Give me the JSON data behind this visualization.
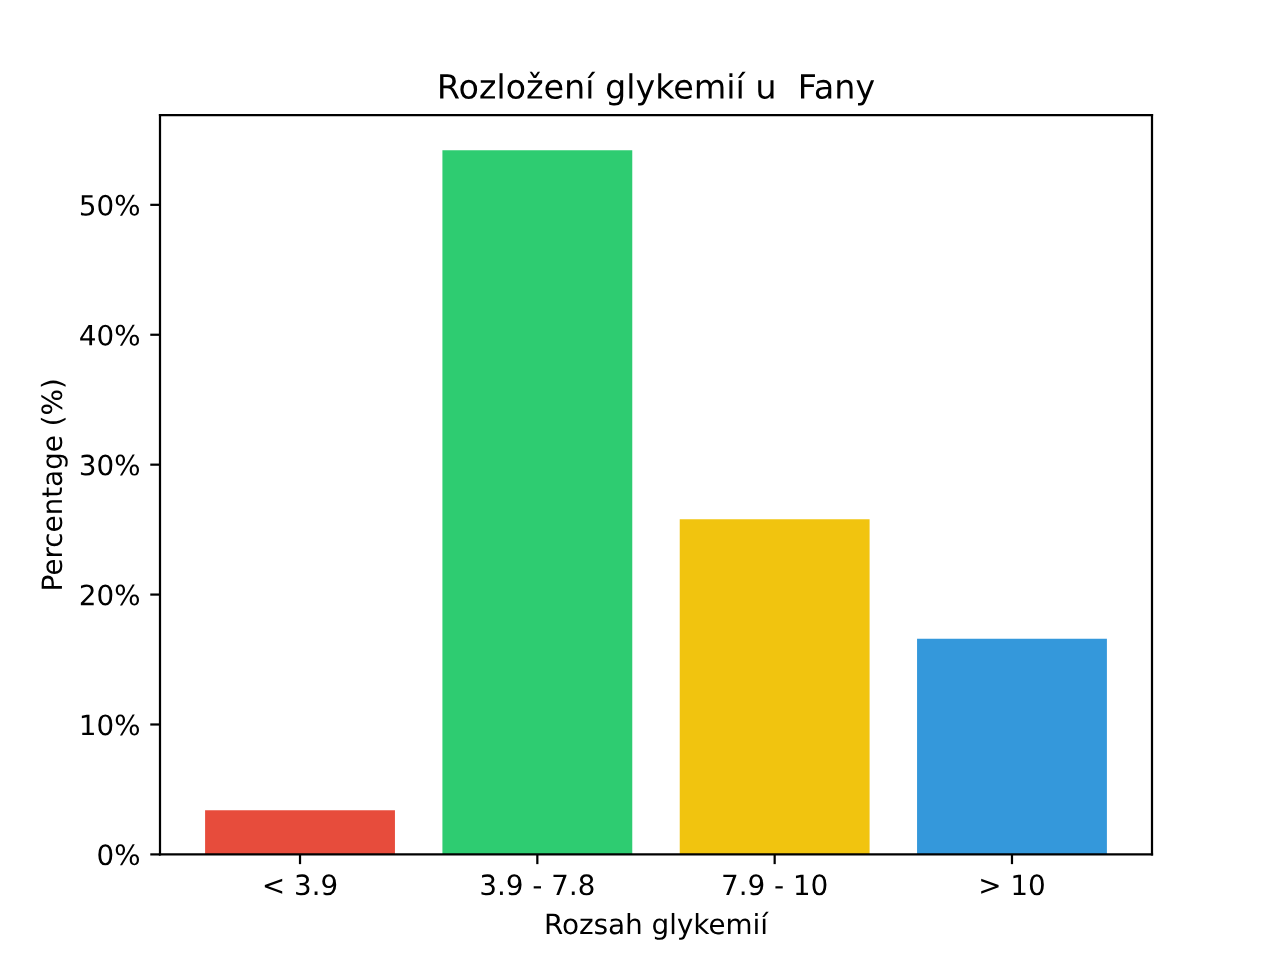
{
  "chart_data": {
    "type": "bar",
    "title": "Rozložení glykemií u  Fany",
    "xlabel": "Rozsah glykemií",
    "ylabel": "Percentage (%)",
    "categories": [
      "< 3.9",
      "3.9 - 7.8",
      "7.9 - 10",
      "> 10"
    ],
    "values": [
      3.4,
      54.2,
      25.8,
      16.6
    ],
    "colors": [
      "#e74c3c",
      "#2ecc71",
      "#f1c40f",
      "#3498db"
    ],
    "ylim": [
      0,
      56.9
    ],
    "yticks": [
      {
        "value": 0,
        "label": "0%"
      },
      {
        "value": 10,
        "label": "10%"
      },
      {
        "value": 20,
        "label": "20%"
      },
      {
        "value": 30,
        "label": "30%"
      },
      {
        "value": 40,
        "label": "40%"
      },
      {
        "value": 50,
        "label": "50%"
      }
    ],
    "grid": false,
    "legend": false
  }
}
